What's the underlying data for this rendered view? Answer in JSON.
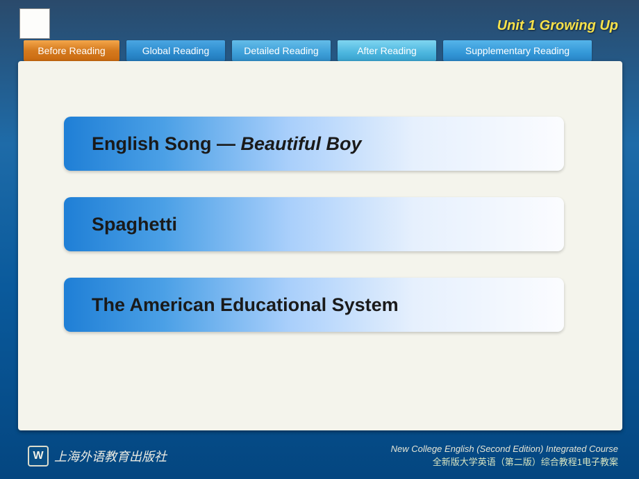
{
  "header": {
    "unit_title": "Unit 1 Growing Up"
  },
  "tabs": [
    {
      "label": "Before Reading",
      "klass": "tab-active"
    },
    {
      "label": "Global Reading",
      "klass": "tab-blue"
    },
    {
      "label": "Detailed Reading",
      "klass": "tab-blue2"
    },
    {
      "label": "After Reading",
      "klass": "tab-blue3"
    },
    {
      "label": "Supplementary Reading",
      "klass": "tab-blue4"
    }
  ],
  "items": {
    "song_prefix": "English Song — ",
    "song_em": "Beautiful Boy",
    "spaghetti": "Spaghetti",
    "system": "The American Educational System"
  },
  "footer": {
    "publisher_cn": "上海外语教育出版社",
    "course_en": "New College English (Second Edition) Integrated Course",
    "course_cn": "全新版大学英语（第二版）综合教程1电子教案"
  },
  "style": {
    "item_gradient": [
      "#1f7fd6",
      "#4ba0e6",
      "#a9cffb",
      "#e6f0fd",
      "#fbfcff"
    ],
    "background_gradient": [
      "#2a4a6b",
      "#1e6ba8",
      "#0a5a9c",
      "#044680"
    ],
    "tab_active_colors": [
      "#f3a64a",
      "#d57a1e",
      "#c96a10"
    ],
    "unit_title_color": "#f7e24a",
    "item_text_fontsize": 27,
    "unit_title_fontsize": 20,
    "tab_fontsize": 14
  }
}
